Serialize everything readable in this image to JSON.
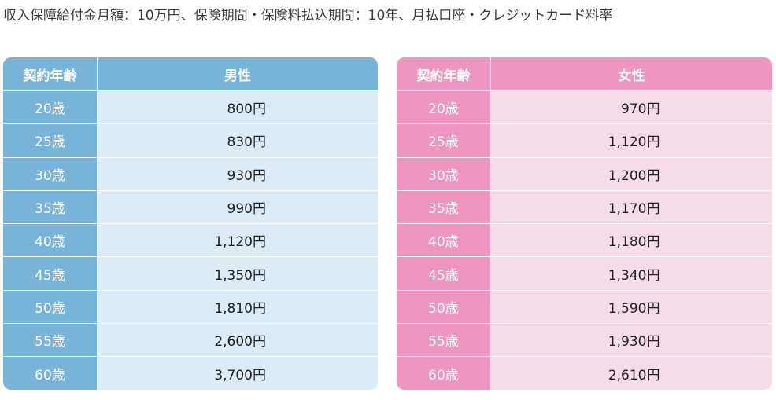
{
  "caption": "収入保障給付金月額：10万円、保険期間・保険料払込期間：10年、月払口座・クレジットカード料率",
  "male_table": {
    "age_header": "契約年齢",
    "gender_header": "男性",
    "rows": [
      {
        "age": "20歳",
        "premium": "800円"
      },
      {
        "age": "25歳",
        "premium": "830円"
      },
      {
        "age": "30歳",
        "premium": "930円"
      },
      {
        "age": "35歳",
        "premium": "990円"
      },
      {
        "age": "40歳",
        "premium": "1,120円"
      },
      {
        "age": "45歳",
        "premium": "1,350円"
      },
      {
        "age": "50歳",
        "premium": "1,810円"
      },
      {
        "age": "55歳",
        "premium": "2,600円"
      },
      {
        "age": "60歳",
        "premium": "3,700円"
      }
    ]
  },
  "female_table": {
    "age_header": "契約年齢",
    "gender_header": "女性",
    "rows": [
      {
        "age": "20歳",
        "premium": "970円"
      },
      {
        "age": "25歳",
        "premium": "1,120円"
      },
      {
        "age": "30歳",
        "premium": "1,200円"
      },
      {
        "age": "35歳",
        "premium": "1,170円"
      },
      {
        "age": "40歳",
        "premium": "1,180円"
      },
      {
        "age": "45歳",
        "premium": "1,340円"
      },
      {
        "age": "50歳",
        "premium": "1,590円"
      },
      {
        "age": "55歳",
        "premium": "1,930円"
      },
      {
        "age": "60歳",
        "premium": "2,610円"
      }
    ]
  },
  "colors": {
    "male_header": "#78b4d9",
    "male_cell": "#dcebf5",
    "female_header": "#ee96c0",
    "female_cell": "#f5dce9"
  }
}
